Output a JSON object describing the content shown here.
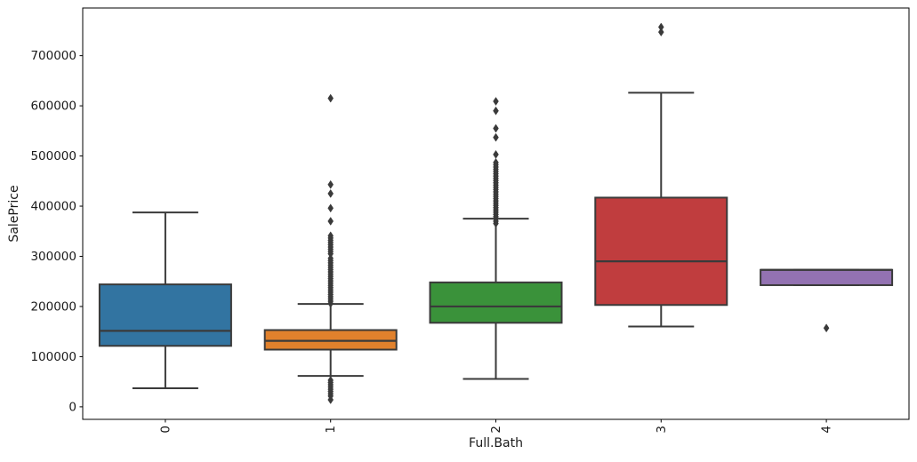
{
  "chart_data": {
    "type": "boxplot",
    "title": "",
    "xlabel": "Full.Bath",
    "ylabel": "SalePrice",
    "categories": [
      "0",
      "1",
      "2",
      "3",
      "4"
    ],
    "ylim": [
      -25000,
      795000
    ],
    "yticks": [
      0,
      100000,
      200000,
      300000,
      400000,
      500000,
      600000,
      700000
    ],
    "grid": false,
    "legend": "none",
    "line_color": "#3a3a3a",
    "flier_marker": "thin-diamond",
    "series": [
      {
        "category": "0",
        "color": "#3274a1",
        "whisker_low": 37000,
        "q1": 121500,
        "median": 151500,
        "q3": 244000,
        "whisker_high": 387500,
        "outliers": []
      },
      {
        "category": "1",
        "color": "#e1812c",
        "whisker_low": 61500,
        "q1": 114000,
        "median": 131500,
        "q3": 153000,
        "whisker_high": 205000,
        "outliers": [
          615000,
          443000,
          425000,
          396000,
          370000,
          341000,
          336500,
          332000,
          327500,
          323000,
          318500,
          314000,
          309500,
          305000,
          296000,
          291500,
          287000,
          282500,
          278000,
          273500,
          269000,
          264500,
          260000,
          255500,
          251000,
          246500,
          242000,
          237500,
          233000,
          228500,
          224000,
          219500,
          215000,
          210500,
          206000,
          53000,
          48500,
          44000,
          39500,
          35000,
          30500,
          26000,
          21500,
          14000
        ]
      },
      {
        "category": "2",
        "color": "#3a923a",
        "whisker_low": 55500,
        "q1": 167500,
        "median": 200000,
        "q3": 248000,
        "whisker_high": 375000,
        "outliers": [
          609000,
          590000,
          555000,
          537000,
          503000,
          487000,
          482500,
          478000,
          473500,
          469000,
          464500,
          460000,
          455500,
          451000,
          446500,
          442000,
          437500,
          433000,
          428500,
          424000,
          419500,
          415000,
          410500,
          406000,
          401500,
          397000,
          392500,
          388000,
          383500,
          379000,
          374500,
          370000,
          365500
        ]
      },
      {
        "category": "3",
        "color": "#c03d3e",
        "whisker_low": 160000,
        "q1": 203000,
        "median": 290000,
        "q3": 417000,
        "whisker_high": 626000,
        "outliers": [
          757000,
          747000
        ]
      },
      {
        "category": "4",
        "color": "#9372b2",
        "whisker_low": 242500,
        "q1": 242500,
        "median": 273000,
        "q3": 273000,
        "whisker_high": 273000,
        "outliers": [
          157000
        ]
      }
    ]
  }
}
